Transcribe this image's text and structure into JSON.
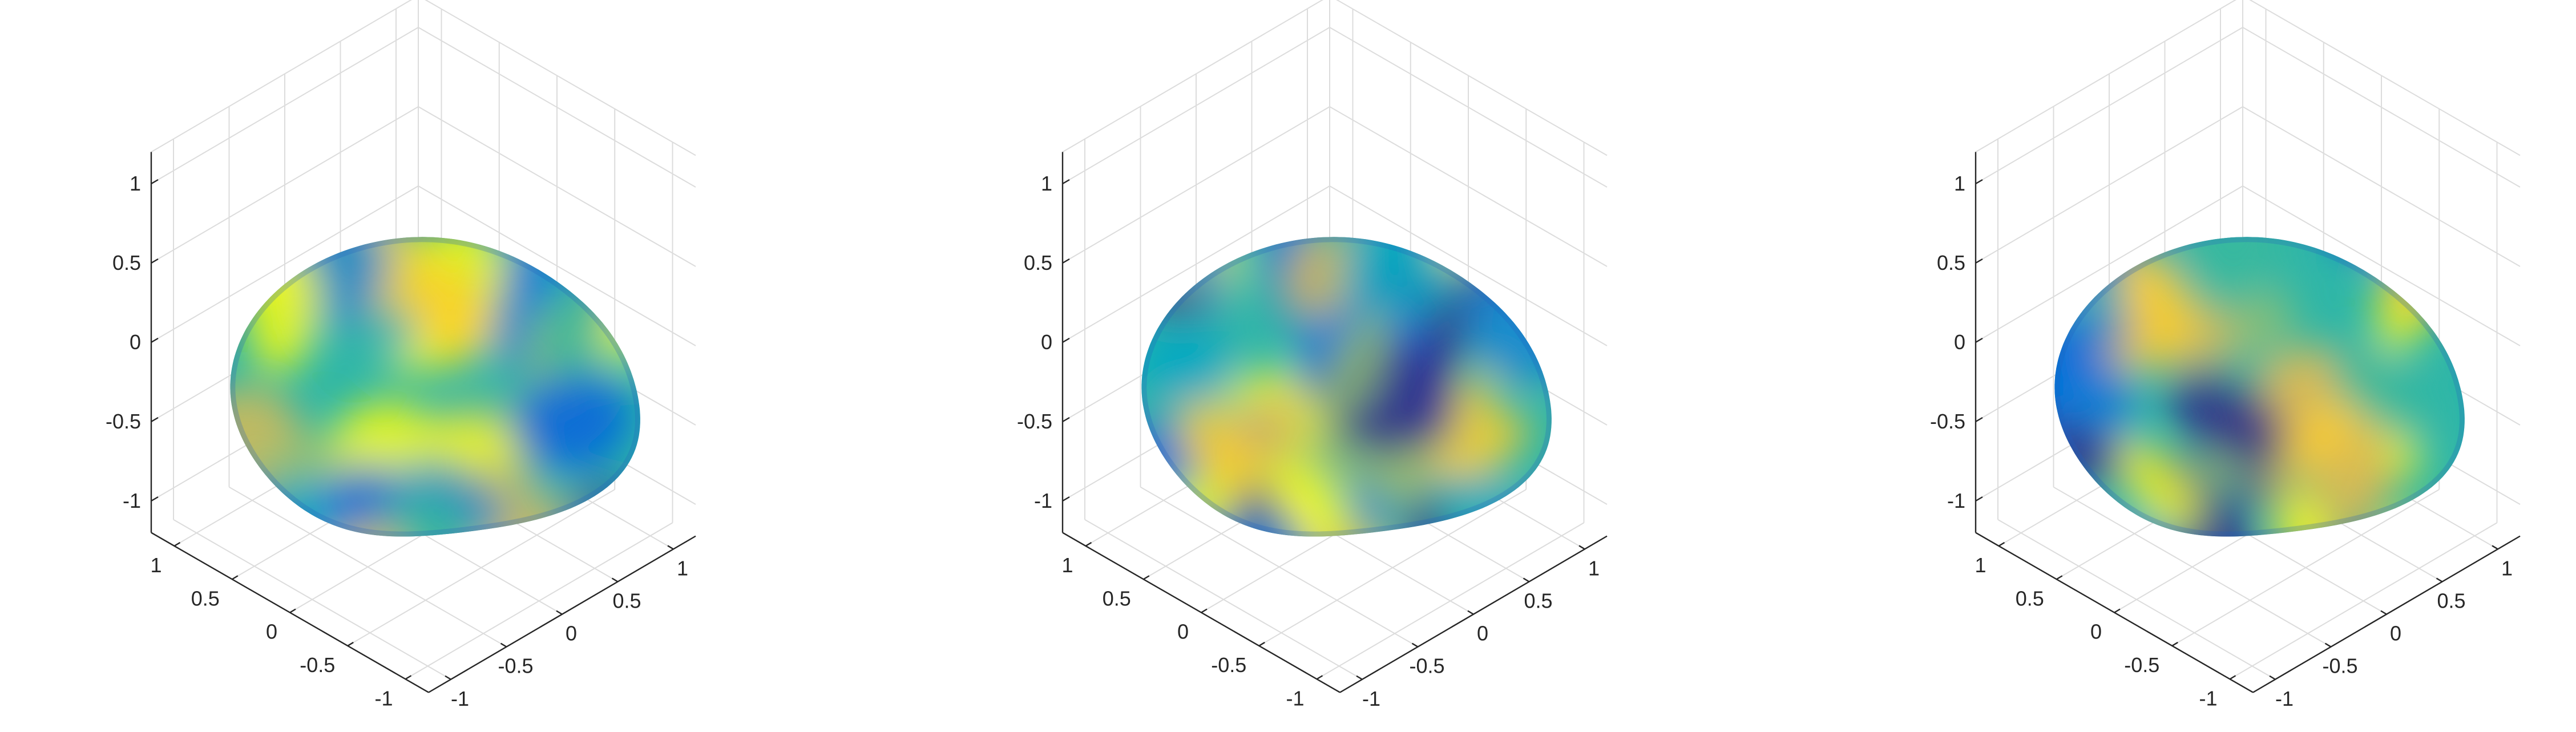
{
  "chart_data": [
    {
      "type": "surface3d",
      "title": "",
      "xlabel": "",
      "ylabel": "",
      "zlabel": "",
      "xlim": [
        -1.2,
        1.2
      ],
      "ylim": [
        -1.2,
        1.2
      ],
      "zlim": [
        -1.2,
        1.2
      ],
      "x_ticks": [
        "-1",
        "-0.5",
        "0",
        "0.5",
        "1"
      ],
      "y_ticks": [
        "-1",
        "-0.5",
        "0",
        "0.5",
        "1"
      ],
      "z_ticks": [
        "-1",
        "-0.5",
        "0",
        "0.5",
        "1"
      ],
      "grid": true,
      "colormap": "parula",
      "seed": 1
    },
    {
      "type": "surface3d",
      "title": "",
      "xlabel": "",
      "ylabel": "",
      "zlabel": "",
      "xlim": [
        -1.2,
        1.2
      ],
      "ylim": [
        -1.2,
        1.2
      ],
      "zlim": [
        -1.2,
        1.2
      ],
      "x_ticks": [
        "-1",
        "-0.5",
        "0",
        "0.5",
        "1"
      ],
      "y_ticks": [
        "-1",
        "-0.5",
        "0",
        "0.5",
        "1"
      ],
      "z_ticks": [
        "-1",
        "-0.5",
        "0",
        "0.5",
        "1"
      ],
      "grid": true,
      "colormap": "parula",
      "seed": 2
    },
    {
      "type": "surface3d",
      "title": "",
      "xlabel": "",
      "ylabel": "",
      "zlabel": "",
      "xlim": [
        -1.2,
        1.2
      ],
      "ylim": [
        -1.2,
        1.2
      ],
      "zlim": [
        -1.2,
        1.2
      ],
      "x_ticks": [
        "-1",
        "-0.5",
        "0",
        "0.5",
        "1"
      ],
      "y_ticks": [
        "-1",
        "-0.5",
        "0",
        "0.5",
        "1"
      ],
      "z_ticks": [
        "-1",
        "-0.5",
        "0",
        "0.5",
        "1"
      ],
      "grid": true,
      "colormap": "parula",
      "seed": 3
    }
  ]
}
